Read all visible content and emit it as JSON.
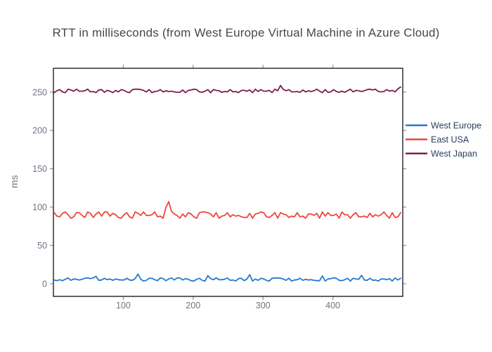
{
  "chart_data": {
    "type": "line",
    "title": "RTT in milliseconds (from West Europe Virtual Machine in Azure Cloud)",
    "xlabel": "",
    "ylabel": "ms",
    "xlim": [
      0,
      500
    ],
    "ylim": [
      -16.5,
      281
    ],
    "x_ticks": [
      100,
      200,
      300,
      400
    ],
    "y_ticks": [
      0,
      50,
      100,
      150,
      200,
      250
    ],
    "grid": false,
    "legend_position": "right",
    "x_start": 1,
    "x_step": 4,
    "series": [
      {
        "name": "West Europe",
        "color": "#2878cf",
        "values": [
          4.9,
          4.0,
          5.3,
          4.0,
          5.8,
          7.6,
          4.4,
          6.2,
          5.8,
          4.9,
          5.8,
          7.1,
          7.6,
          6.7,
          7.6,
          9.8,
          4.4,
          4.9,
          7.1,
          5.3,
          6.2,
          4.4,
          6.2,
          5.3,
          4.9,
          4.9,
          7.1,
          4.9,
          4.4,
          6.7,
          12.6,
          5.8,
          3.5,
          4.4,
          7.1,
          7.1,
          5.3,
          4.0,
          7.6,
          6.7,
          4.0,
          6.2,
          7.6,
          4.9,
          7.6,
          7.6,
          4.9,
          6.7,
          5.8,
          4.0,
          3.5,
          5.8,
          7.1,
          4.4,
          3.5,
          10.6,
          6.7,
          5.3,
          7.6,
          5.3,
          5.3,
          5.8,
          7.6,
          4.4,
          4.9,
          3.5,
          6.7,
          7.1,
          4.0,
          6.2,
          11.8,
          3.5,
          6.2,
          4.4,
          7.1,
          6.2,
          4.4,
          3.5,
          7.1,
          7.6,
          7.6,
          7.1,
          6.2,
          4.4,
          7.1,
          3.5,
          4.9,
          5.3,
          7.1,
          4.4,
          5.8,
          4.9,
          5.3,
          4.4,
          4.0,
          4.0,
          10.2,
          3.5,
          6.2,
          6.7,
          7.6,
          7.1,
          4.4,
          4.0,
          5.3,
          7.1,
          3.5,
          7.1,
          6.2,
          5.8,
          11.0,
          4.9,
          4.4,
          7.1,
          4.4,
          4.9,
          3.5,
          6.2,
          6.2,
          5.3,
          6.7,
          3.5,
          7.6,
          4.9,
          7.1
        ]
      },
      {
        "name": "East USA",
        "color": "#f0453a",
        "values": [
          92.7,
          88.2,
          87.3,
          91.8,
          93.6,
          90.0,
          85.5,
          87.3,
          92.7,
          92.7,
          89.1,
          86.4,
          93.6,
          91.8,
          86.4,
          90.9,
          93.6,
          88.2,
          93.6,
          93.6,
          88.2,
          91.8,
          90.0,
          86.4,
          85.5,
          90.0,
          92.7,
          87.3,
          85.5,
          93.6,
          91.8,
          89.1,
          93.6,
          89.1,
          89.1,
          90.0,
          93.6,
          87.3,
          88.2,
          85.5,
          99.5,
          107.0,
          94.5,
          90.9,
          89.1,
          85.5,
          90.9,
          87.3,
          92.7,
          90.9,
          87.3,
          85.5,
          92.7,
          93.6,
          93.6,
          92.7,
          90.9,
          87.3,
          92.7,
          85.5,
          88.2,
          89.1,
          92.7,
          87.3,
          90.0,
          88.2,
          89.1,
          87.3,
          86.4,
          86.4,
          91.8,
          85.5,
          90.9,
          91.8,
          93.6,
          92.7,
          87.3,
          86.4,
          89.1,
          92.7,
          85.5,
          92.7,
          90.9,
          90.0,
          86.4,
          88.2,
          87.3,
          92.7,
          87.3,
          88.2,
          85.5,
          90.9,
          90.9,
          89.1,
          91.8,
          85.5,
          93.6,
          88.2,
          92.7,
          89.1,
          89.1,
          90.9,
          85.5,
          93.6,
          90.0,
          90.0,
          85.5,
          90.0,
          92.7,
          87.3,
          87.3,
          88.2,
          86.4,
          91.8,
          87.3,
          90.0,
          88.2,
          90.0,
          93.6,
          89.1,
          85.5,
          92.7,
          86.4,
          87.3,
          92.7
        ]
      },
      {
        "name": "West Japan",
        "color": "#7c1e4f",
        "values": [
          249.2,
          251.7,
          253.2,
          250.2,
          249.2,
          253.7,
          252.7,
          251.2,
          253.7,
          251.2,
          251.2,
          251.7,
          253.7,
          250.2,
          250.7,
          249.2,
          252.7,
          253.2,
          249.7,
          252.2,
          251.2,
          249.2,
          252.2,
          250.2,
          253.2,
          252.2,
          250.2,
          249.2,
          253.2,
          253.7,
          253.7,
          253.2,
          252.2,
          250.2,
          253.2,
          249.2,
          250.7,
          251.2,
          253.2,
          250.2,
          251.7,
          250.7,
          251.2,
          250.2,
          249.7,
          249.7,
          252.7,
          249.2,
          252.2,
          252.7,
          253.7,
          253.2,
          250.2,
          249.7,
          251.2,
          253.2,
          249.2,
          253.2,
          252.2,
          251.7,
          249.7,
          250.7,
          250.2,
          253.2,
          250.2,
          250.7,
          249.2,
          252.2,
          252.2,
          251.2,
          252.7,
          249.2,
          253.7,
          250.7,
          253.2,
          251.2,
          251.2,
          252.2,
          249.2,
          253.7,
          251.7,
          258.6,
          253.5,
          251.7,
          253.2,
          250.2,
          250.2,
          250.7,
          249.7,
          252.7,
          250.2,
          251.7,
          250.7,
          251.7,
          253.7,
          251.2,
          249.2,
          253.2,
          249.7,
          250.2,
          253.2,
          250.7,
          249.7,
          251.2,
          249.7,
          251.7,
          253.7,
          250.2,
          252.2,
          251.7,
          250.7,
          251.7,
          253.2,
          253.7,
          252.7,
          253.7,
          250.7,
          250.2,
          250.7,
          253.2,
          251.2,
          252.2,
          250.2,
          254.2,
          256.5
        ]
      }
    ]
  },
  "styles": {
    "background": "#ffffff",
    "title_color": "#4d4449",
    "axis_line_color": "#202027",
    "tick_color": "#999999",
    "tick_label_color": "#6e7682",
    "legend_text_color": "#2a3f5f"
  }
}
